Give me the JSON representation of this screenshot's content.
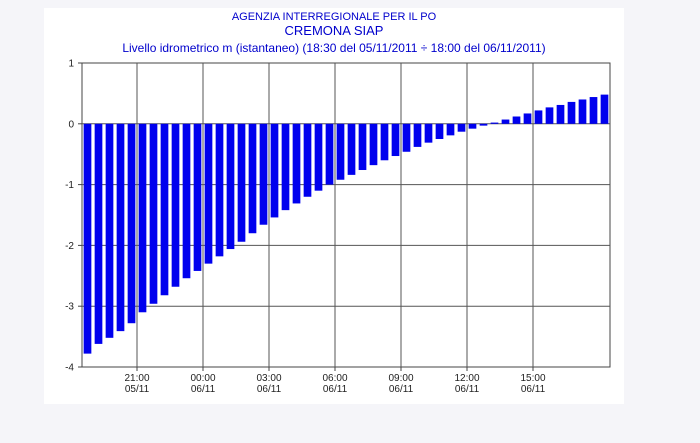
{
  "chart_data": {
    "type": "bar",
    "title": "AGENZIA INTERREGIONALE PER IL PO",
    "subtitle": "CREMONA SIAP",
    "caption": "Livello idrometrico m (istantaneo) (18:30 del 05/11/2011 ÷ 18:00 del 06/11/2011)",
    "xlabel": "",
    "ylabel": "",
    "ylim": [
      -4,
      1
    ],
    "yticks": [
      "1",
      "0",
      "-1",
      "-2",
      "-3",
      "-4"
    ],
    "grid": true,
    "bar_color": "#0000ee",
    "xticks": [
      {
        "time": "21:00",
        "date": "05/11",
        "index": 5
      },
      {
        "time": "00:00",
        "date": "06/11",
        "index": 11
      },
      {
        "time": "03:00",
        "date": "06/11",
        "index": 17
      },
      {
        "time": "06:00",
        "date": "06/11",
        "index": 23
      },
      {
        "time": "09:00",
        "date": "06/11",
        "index": 29
      },
      {
        "time": "12:00",
        "date": "06/11",
        "index": 35
      },
      {
        "time": "15:00",
        "date": "06/11",
        "index": 41
      }
    ],
    "x": [
      "18:30",
      "19:00",
      "19:30",
      "20:00",
      "20:30",
      "21:00",
      "21:30",
      "22:00",
      "22:30",
      "23:00",
      "23:30",
      "00:00",
      "00:30",
      "01:00",
      "01:30",
      "02:00",
      "02:30",
      "03:00",
      "03:30",
      "04:00",
      "04:30",
      "05:00",
      "05:30",
      "06:00",
      "06:30",
      "07:00",
      "07:30",
      "08:00",
      "08:30",
      "09:00",
      "09:30",
      "10:00",
      "10:30",
      "11:00",
      "11:30",
      "12:00",
      "12:30",
      "13:00",
      "13:30",
      "14:00",
      "14:30",
      "15:00",
      "15:30",
      "16:00",
      "16:30",
      "17:00",
      "17:30",
      "18:00"
    ],
    "values": [
      -3.78,
      -3.62,
      -3.52,
      -3.41,
      -3.28,
      -3.1,
      -2.96,
      -2.82,
      -2.68,
      -2.54,
      -2.42,
      -2.3,
      -2.18,
      -2.06,
      -1.94,
      -1.8,
      -1.66,
      -1.54,
      -1.42,
      -1.31,
      -1.2,
      -1.1,
      -1.0,
      -0.92,
      -0.84,
      -0.76,
      -0.68,
      -0.6,
      -0.53,
      -0.46,
      -0.38,
      -0.31,
      -0.25,
      -0.19,
      -0.13,
      -0.08,
      -0.03,
      0.02,
      0.07,
      0.12,
      0.17,
      0.22,
      0.27,
      0.31,
      0.36,
      0.4,
      0.44,
      0.48
    ]
  }
}
